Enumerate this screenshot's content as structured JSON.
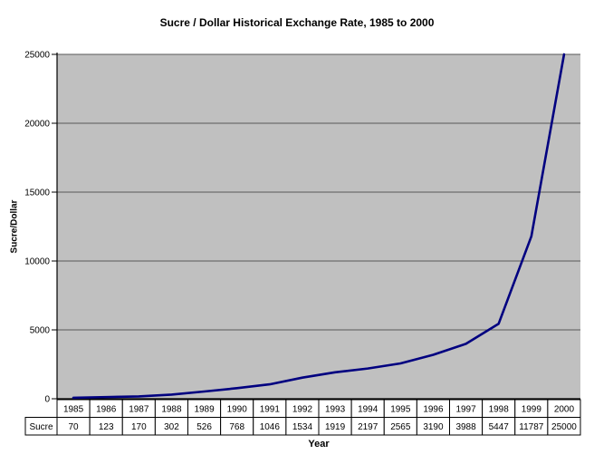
{
  "chart_data": {
    "type": "line",
    "title": "Sucre / Dollar Historical Exchange Rate, 1985 to 2000",
    "xlabel": "Year",
    "ylabel": "Sucre/Dollar",
    "categories": [
      "1985",
      "1986",
      "1987",
      "1988",
      "1989",
      "1990",
      "1991",
      "1992",
      "1993",
      "1994",
      "1995",
      "1996",
      "1997",
      "1998",
      "1999",
      "2000"
    ],
    "series": [
      {
        "name": "Sucre",
        "values": [
          70,
          123,
          170,
          302,
          526,
          768,
          1046,
          1534,
          1919,
          2197,
          2565,
          3190,
          3988,
          5447,
          11787,
          25000
        ]
      }
    ],
    "ylim": [
      0,
      25000
    ],
    "yticks": [
      0,
      5000,
      10000,
      15000,
      20000,
      25000
    ],
    "grid": true,
    "legend_position": "none",
    "data_table_below_axis": true,
    "colors": {
      "line": "#000080",
      "plot_background": "#C0C0C0",
      "gridline": "#595959",
      "axis": "#000000",
      "table_border": "#000000",
      "table_background": "#FFFFFF",
      "text": "#000000",
      "page_background": "#FFFFFF"
    }
  }
}
